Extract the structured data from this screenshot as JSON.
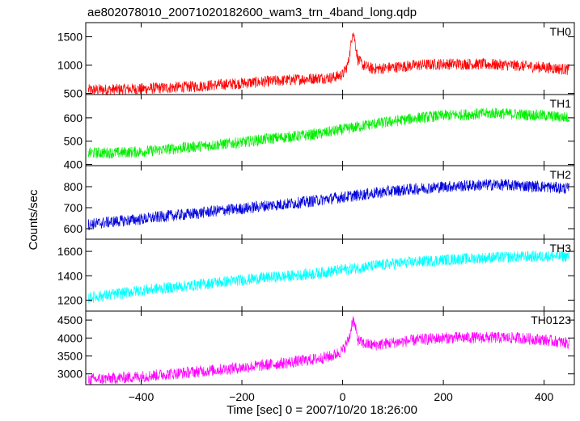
{
  "chart_data": {
    "type": "line",
    "title": "ae802078010_20071020182600_wam3_trn_4band_long.qdp",
    "xlabel": "Time [sec] 0 = 2007/10/20 18:26:00",
    "ylabel": "Counts/sec",
    "xlim": [
      -510,
      460
    ],
    "x_ticks": [
      -400,
      -200,
      0,
      200,
      400
    ],
    "grid": false,
    "panels": [
      {
        "name": "TH0",
        "color": "#ff0000",
        "ylim": [
          480,
          1750
        ],
        "y_ticks": [
          500,
          1000,
          1500
        ],
        "series": [
          {
            "x": [
              -505,
              -450,
              -400,
              -350,
              -300,
              -250,
              -200,
              -150,
              -100,
              -50,
              -20,
              0,
              10,
              15,
              20,
              25,
              30,
              40,
              60,
              100,
              150,
              200,
              250,
              300,
              350,
              400,
              450
            ],
            "y": [
              560,
              570,
              580,
              600,
              620,
              650,
              680,
              710,
              740,
              770,
              780,
              830,
              1000,
              1250,
              1620,
              1400,
              1100,
              1000,
              930,
              960,
              1000,
              1020,
              1020,
              1010,
              990,
              960,
              920
            ]
          }
        ]
      },
      {
        "name": "TH1",
        "color": "#00ee00",
        "ylim": [
          395,
          700
        ],
        "y_ticks": [
          400,
          500,
          600
        ],
        "series": [
          {
            "x": [
              -505,
              -450,
              -400,
              -350,
              -300,
              -250,
              -200,
              -150,
              -100,
              -50,
              0,
              50,
              100,
              150,
              200,
              250,
              300,
              350,
              400,
              450
            ],
            "y": [
              450,
              450,
              455,
              465,
              475,
              485,
              495,
              510,
              520,
              530,
              550,
              570,
              585,
              600,
              610,
              615,
              620,
              615,
              610,
              600
            ]
          }
        ]
      },
      {
        "name": "TH2",
        "color": "#0000dd",
        "ylim": [
          550,
          900
        ],
        "y_ticks": [
          600,
          700,
          800
        ],
        "series": [
          {
            "x": [
              -505,
              -450,
              -400,
              -350,
              -300,
              -250,
              -200,
              -150,
              -100,
              -50,
              0,
              50,
              100,
              150,
              200,
              250,
              300,
              350,
              400,
              450
            ],
            "y": [
              620,
              635,
              645,
              660,
              670,
              685,
              695,
              710,
              720,
              735,
              750,
              765,
              780,
              790,
              800,
              805,
              810,
              805,
              800,
              790
            ]
          }
        ]
      },
      {
        "name": "TH3",
        "color": "#00ffff",
        "ylim": [
          1110,
          1700
        ],
        "y_ticks": [
          1200,
          1400,
          1600
        ],
        "series": [
          {
            "x": [
              -505,
              -450,
              -400,
              -350,
              -300,
              -250,
              -200,
              -150,
              -100,
              -50,
              0,
              50,
              100,
              150,
              200,
              250,
              300,
              350,
              400,
              450
            ],
            "y": [
              1220,
              1250,
              1280,
              1300,
              1320,
              1345,
              1365,
              1385,
              1400,
              1420,
              1450,
              1475,
              1500,
              1515,
              1530,
              1540,
              1550,
              1555,
              1560,
              1560
            ]
          }
        ]
      },
      {
        "name": "TH0123",
        "color": "#ff00ff",
        "ylim": [
          2700,
          4750
        ],
        "y_ticks": [
          3000,
          3500,
          4000,
          4500
        ],
        "series": [
          {
            "x": [
              -505,
              -450,
              -400,
              -350,
              -300,
              -250,
              -200,
              -150,
              -100,
              -50,
              -20,
              0,
              10,
              15,
              20,
              25,
              30,
              40,
              60,
              100,
              150,
              200,
              250,
              300,
              350,
              400,
              450
            ],
            "y": [
              2840,
              2880,
              2930,
              2990,
              3050,
              3110,
              3180,
              3250,
              3330,
              3420,
              3500,
              3650,
              3900,
              4100,
              4550,
              4300,
              3950,
              3850,
              3800,
              3870,
              3950,
              4000,
              4010,
              4010,
              4000,
              3950,
              3850
            ]
          }
        ]
      }
    ]
  }
}
